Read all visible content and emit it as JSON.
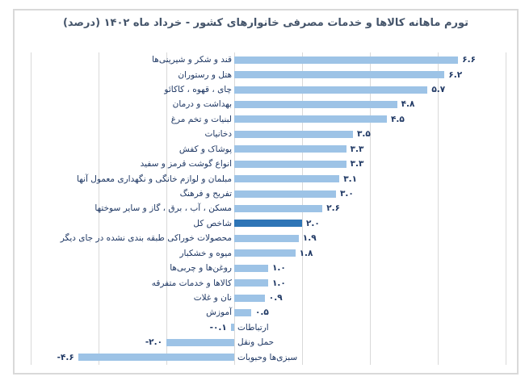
{
  "chart_data": {
    "type": "bar",
    "orientation": "horizontal",
    "title": "تورم ماهانه کالاها و خدمات مصرفی خانوارهای کشور - خرداد ماه ۱۴۰۲ (درصد)",
    "categories": [
      "قند و شکر و شیرینی‌ها",
      "هتل و رستوران",
      "چای ، قهوه ، کاکائو",
      "بهداشت و درمان",
      "لبنیات و تخم مرغ",
      "دخانیات",
      "پوشاک و کفش",
      "انواع گوشت قرمز و سفید",
      "مبلمان و لوازم خانگی و نگهداری معمول آنها",
      "تفریح و فرهنگ",
      "مسکن ، آب ، برق ، گاز و سایر سوختها",
      "شاخص کل",
      "محصولات خوراکی طبقه بندی نشده در جای دیگر",
      "میوه و خشکبار",
      "روغن‌ها و چربی‌ها",
      "کالاها و خدمات متفرقه",
      "نان و غلات",
      "آموزش",
      "ارتباطات",
      "حمل ونقل",
      "سبزی‌ها وحبوبات"
    ],
    "values": [
      6.6,
      6.2,
      5.7,
      4.8,
      4.5,
      3.5,
      3.3,
      3.3,
      3.1,
      3.0,
      2.6,
      2.0,
      1.9,
      1.8,
      1.0,
      1.0,
      0.9,
      0.5,
      -0.1,
      -2.0,
      -4.6
    ],
    "value_labels": [
      "۶.۶",
      "۶.۲",
      "۵.۷",
      "۴.۸",
      "۴.۵",
      "۳.۵",
      "۳.۳",
      "۳.۳",
      "۳.۱",
      "۳.۰",
      "۲.۶",
      "۲.۰",
      "۱.۹",
      "۱.۸",
      "۱.۰",
      "۱.۰",
      "۰.۹",
      "۰.۵",
      "-۰.۱",
      "-۲.۰",
      "-۴.۶"
    ],
    "highlight_index": 11,
    "highlight_category": "شاخص کل",
    "xlim": [
      -6,
      8
    ],
    "grid_step": 2,
    "grid": true,
    "legend": "none",
    "colors": {
      "bar": "#9DC3E6",
      "highlight_bar": "#2E75B6",
      "gridline": "#D9D9D9",
      "frame_border": "#D9D9D9",
      "label_text": "#1F3864",
      "title_text": "#44546A",
      "background": "#FFFFFF"
    }
  }
}
